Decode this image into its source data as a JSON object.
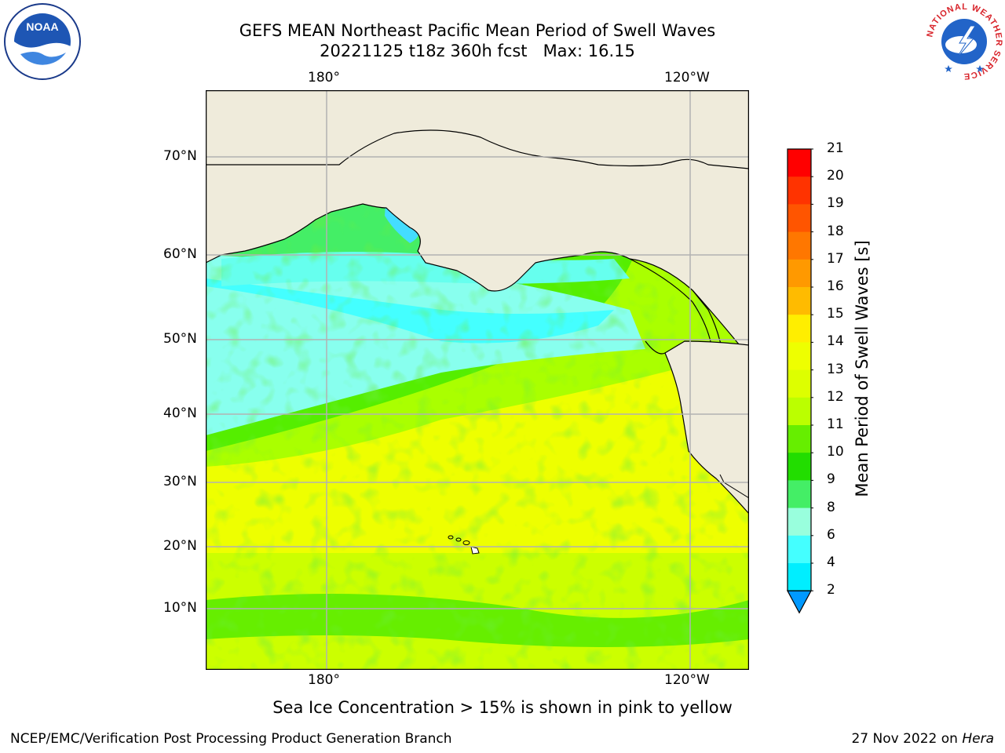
{
  "title": "GEFS MEAN Northeast Pacific Mean Period of Swell Waves",
  "subtitle": "20221125 t18z 360h fcst   Max: 16.15",
  "map": {
    "top_lon_labels": [
      "180°",
      "120°W"
    ],
    "bottom_lon_labels": [
      "180°",
      "120°W"
    ],
    "lat_labels": [
      "70°N",
      "60°N",
      "50°N",
      "40°N",
      "30°N",
      "20°N",
      "10°N"
    ],
    "grid": true
  },
  "colorbar": {
    "title": "Mean Period of Swell Waves [s]",
    "ticks": [
      "21",
      "20",
      "19",
      "18",
      "17",
      "16",
      "15",
      "14",
      "13",
      "12",
      "11",
      "10",
      "9",
      "8",
      "6",
      "4",
      "2"
    ],
    "extend": "min",
    "colors": [
      "#ff0000",
      "#ff3300",
      "#ff5500",
      "#ff7700",
      "#ff9900",
      "#ffbb00",
      "#ffee00",
      "#eeff00",
      "#ddff00",
      "#bbff00",
      "#66ee00",
      "#22dd00",
      "#44ee66",
      "#99ffdd",
      "#44ffff",
      "#00eeff",
      "#0099ff",
      "#0033ff"
    ]
  },
  "note": "Sea Ice Concentration > 15% is shown in pink to yellow",
  "credit": "NCEP/EMC/Verification Post Processing Product Generation Branch",
  "date": "27 Nov 2022 on",
  "host": "Hera",
  "logos": {
    "noaa": "NOAA",
    "nws": "NATIONAL WEATHER SERVICE"
  }
}
